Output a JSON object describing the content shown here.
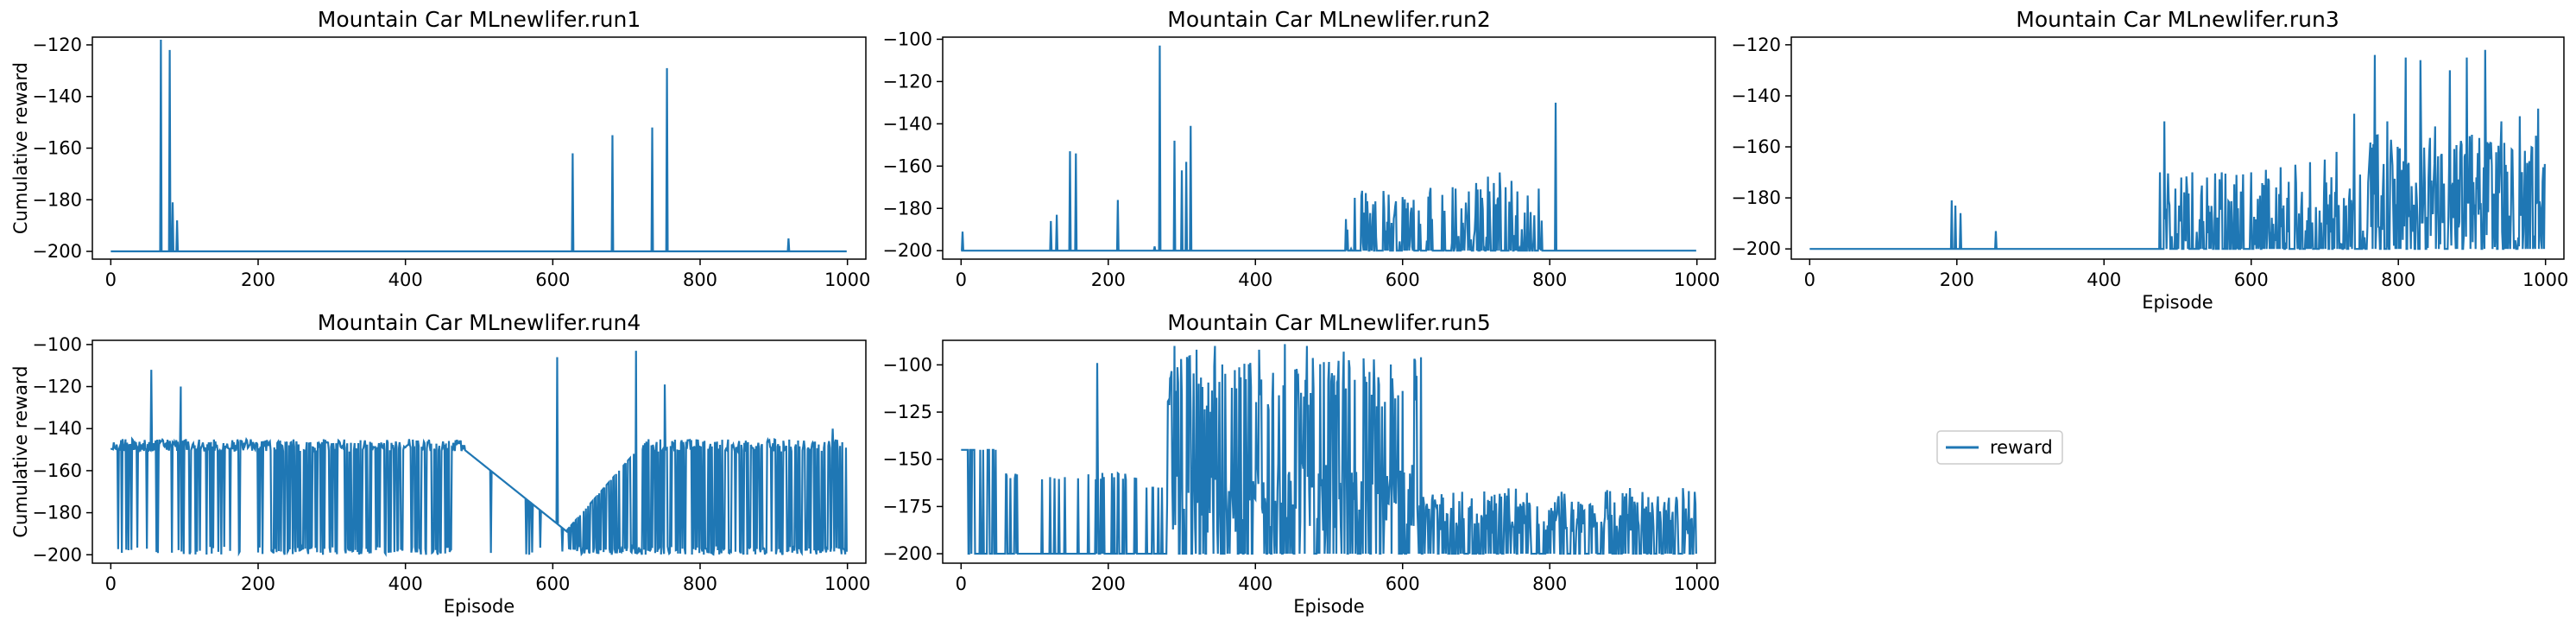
{
  "figure": {
    "legend": {
      "label": "reward",
      "color": "#1f77b4",
      "placement": "lower-right-empty-cell"
    }
  },
  "chart_data": [
    {
      "type": "line",
      "title": "Mountain Car MLnewlifer.run1",
      "xlabel": "",
      "ylabel": "Cumulative reward",
      "xlim": [
        -25,
        1025
      ],
      "ylim": [
        -203,
        -117
      ],
      "xticks": [
        0,
        200,
        400,
        600,
        800,
        1000
      ],
      "yticks": [
        -200,
        -180,
        -160,
        -140,
        -120
      ],
      "baseline": -200,
      "spikes": [
        {
          "x": 68,
          "y": -118
        },
        {
          "x": 80,
          "y": -122
        },
        {
          "x": 84,
          "y": -181
        },
        {
          "x": 90,
          "y": -188
        },
        {
          "x": 627,
          "y": -162
        },
        {
          "x": 681,
          "y": -155
        },
        {
          "x": 735,
          "y": -152
        },
        {
          "x": 755,
          "y": -129
        },
        {
          "x": 920,
          "y": -195
        }
      ],
      "color": "#1f77b4"
    },
    {
      "type": "line",
      "title": "Mountain Car MLnewlifer.run2",
      "xlabel": "",
      "ylabel": "",
      "xlim": [
        -25,
        1025
      ],
      "ylim": [
        -204,
        -99
      ],
      "xticks": [
        0,
        200,
        400,
        600,
        800,
        1000
      ],
      "yticks": [
        -200,
        -180,
        -160,
        -140,
        -120,
        -100
      ],
      "baseline": -200,
      "spikes": [
        {
          "x": 2,
          "y": -191
        },
        {
          "x": 122,
          "y": -186
        },
        {
          "x": 130,
          "y": -183
        },
        {
          "x": 148,
          "y": -153
        },
        {
          "x": 156,
          "y": -154
        },
        {
          "x": 213,
          "y": -176
        },
        {
          "x": 263,
          "y": -198
        },
        {
          "x": 270,
          "y": -103
        },
        {
          "x": 290,
          "y": -148
        },
        {
          "x": 300,
          "y": -162
        },
        {
          "x": 306,
          "y": -158
        },
        {
          "x": 312,
          "y": -141
        },
        {
          "x": 525,
          "y": -190
        },
        {
          "x": 535,
          "y": -175
        },
        {
          "x": 548,
          "y": -182
        },
        {
          "x": 560,
          "y": -178
        },
        {
          "x": 575,
          "y": -180
        },
        {
          "x": 590,
          "y": -179
        },
        {
          "x": 605,
          "y": -180
        },
        {
          "x": 622,
          "y": -181
        },
        {
          "x": 640,
          "y": -185
        },
        {
          "x": 668,
          "y": -170
        },
        {
          "x": 680,
          "y": -180
        },
        {
          "x": 690,
          "y": -172
        },
        {
          "x": 700,
          "y": -168
        },
        {
          "x": 708,
          "y": -175
        },
        {
          "x": 716,
          "y": -165
        },
        {
          "x": 724,
          "y": -168
        },
        {
          "x": 732,
          "y": -163
        },
        {
          "x": 740,
          "y": -170
        },
        {
          "x": 748,
          "y": -167
        },
        {
          "x": 756,
          "y": -172
        },
        {
          "x": 766,
          "y": -182
        },
        {
          "x": 808,
          "y": -130
        }
      ],
      "color": "#1f77b4"
    },
    {
      "type": "line",
      "title": "Mountain Car MLnewlifer.run3",
      "xlabel": "Episode",
      "ylabel": "",
      "xlim": [
        -25,
        1025
      ],
      "ylim": [
        -204,
        -117
      ],
      "xticks": [
        0,
        200,
        400,
        600,
        800,
        1000
      ],
      "yticks": [
        -200,
        -180,
        -160,
        -140,
        -120
      ],
      "baseline": -200,
      "spikes": [
        {
          "x": 193,
          "y": -181
        },
        {
          "x": 198,
          "y": -183
        },
        {
          "x": 205,
          "y": -186
        },
        {
          "x": 253,
          "y": -193
        },
        {
          "x": 476,
          "y": -170
        },
        {
          "x": 482,
          "y": -150
        },
        {
          "x": 492,
          "y": -195
        },
        {
          "x": 505,
          "y": -172
        },
        {
          "x": 520,
          "y": -170
        },
        {
          "x": 540,
          "y": -172
        },
        {
          "x": 560,
          "y": -170
        },
        {
          "x": 580,
          "y": -171
        },
        {
          "x": 600,
          "y": -170
        },
        {
          "x": 620,
          "y": -169
        },
        {
          "x": 640,
          "y": -168
        },
        {
          "x": 660,
          "y": -167
        },
        {
          "x": 680,
          "y": -166
        },
        {
          "x": 700,
          "y": -165
        },
        {
          "x": 716,
          "y": -162
        },
        {
          "x": 740,
          "y": -147
        },
        {
          "x": 768,
          "y": -124
        },
        {
          "x": 785,
          "y": -150
        },
        {
          "x": 810,
          "y": -125
        },
        {
          "x": 830,
          "y": -126
        },
        {
          "x": 850,
          "y": -152
        },
        {
          "x": 870,
          "y": -130
        },
        {
          "x": 893,
          "y": -125
        },
        {
          "x": 918,
          "y": -122
        },
        {
          "x": 940,
          "y": -150
        },
        {
          "x": 965,
          "y": -148
        },
        {
          "x": 990,
          "y": -145
        }
      ],
      "color": "#1f77b4"
    },
    {
      "type": "line",
      "title": "Mountain Car MLnewlifer.run4",
      "xlabel": "Episode",
      "ylabel": "Cumulative reward",
      "xlim": [
        -25,
        1025
      ],
      "ylim": [
        -204,
        -98
      ],
      "xticks": [
        0,
        200,
        400,
        600,
        800,
        1000
      ],
      "yticks": [
        -200,
        -180,
        -160,
        -140,
        -120,
        -100
      ],
      "baseline": -145,
      "spikes": [
        {
          "x": 55,
          "y": -112
        },
        {
          "x": 95,
          "y": -120
        },
        {
          "x": 606,
          "y": -106
        },
        {
          "x": 713,
          "y": -103
        },
        {
          "x": 752,
          "y": -119
        },
        {
          "x": 980,
          "y": -140
        }
      ],
      "color": "#1f77b4"
    },
    {
      "type": "line",
      "title": "Mountain Car MLnewlifer.run5",
      "xlabel": "Episode",
      "ylabel": "",
      "xlim": [
        -25,
        1025
      ],
      "ylim": [
        -205,
        -87
      ],
      "xticks": [
        0,
        200,
        400,
        600,
        800,
        1000
      ],
      "yticks": [
        -200,
        -175,
        -150,
        -125,
        -100
      ],
      "baseline": -200,
      "spikes": [
        {
          "x": 185,
          "y": -99
        },
        {
          "x": 290,
          "y": -90
        },
        {
          "x": 320,
          "y": -92
        },
        {
          "x": 345,
          "y": -90
        },
        {
          "x": 405,
          "y": -92
        },
        {
          "x": 440,
          "y": -89
        },
        {
          "x": 470,
          "y": -90
        },
        {
          "x": 520,
          "y": -93
        },
        {
          "x": 625,
          "y": -96
        }
      ],
      "color": "#1f77b4"
    }
  ]
}
